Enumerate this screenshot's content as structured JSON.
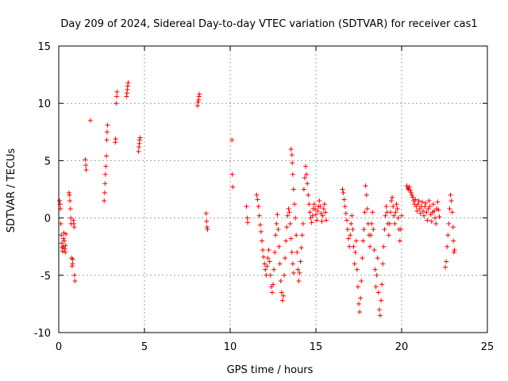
{
  "chart_data": {
    "type": "scatter",
    "title": "Day 209 of 2024, Sidereal Day-to-day VTEC variation (SDTVAR) for receiver cas1",
    "xlabel": "GPS time / hours",
    "ylabel": "SDTVAR / TECUs",
    "xlim": [
      0,
      25
    ],
    "ylim": [
      -10,
      15
    ],
    "xticks": [
      0,
      5,
      10,
      15,
      20,
      25
    ],
    "yticks": [
      -10,
      -5,
      0,
      5,
      10,
      15
    ],
    "xtick_labels": [
      "0",
      "5",
      "10",
      "15",
      "20",
      "25"
    ],
    "ytick_labels": [
      "-10",
      "-5",
      "0",
      "5",
      "10",
      "15"
    ],
    "grid": true,
    "marker": "+",
    "color": "#ff0000",
    "series": [
      {
        "name": "cas1",
        "points": [
          [
            0.05,
            1.5
          ],
          [
            0.08,
            1.2
          ],
          [
            0.1,
            0.8
          ],
          [
            0.12,
            -0.5
          ],
          [
            0.15,
            -1.5
          ],
          [
            0.18,
            -2.2
          ],
          [
            0.2,
            -2.6
          ],
          [
            0.22,
            -2.9
          ],
          [
            0.25,
            -2.5
          ],
          [
            0.28,
            -1.8
          ],
          [
            0.3,
            -1.3
          ],
          [
            0.32,
            -2.0
          ],
          [
            0.35,
            -2.7
          ],
          [
            0.38,
            -3.0
          ],
          [
            0.4,
            -2.4
          ],
          [
            0.42,
            -1.4
          ],
          [
            0.6,
            2.2
          ],
          [
            0.62,
            2.0
          ],
          [
            0.65,
            1.5
          ],
          [
            0.68,
            0.8
          ],
          [
            0.7,
            0.0
          ],
          [
            0.72,
            -0.5
          ],
          [
            0.75,
            -3.5
          ],
          [
            0.78,
            -4.2
          ],
          [
            0.8,
            -4.0
          ],
          [
            0.82,
            -3.6
          ],
          [
            0.85,
            -0.2
          ],
          [
            0.88,
            -0.5
          ],
          [
            0.9,
            -0.8
          ],
          [
            0.92,
            -5.0
          ],
          [
            0.95,
            -5.5
          ],
          [
            1.55,
            5.1
          ],
          [
            1.58,
            4.6
          ],
          [
            1.6,
            4.2
          ],
          [
            1.85,
            8.5
          ],
          [
            2.65,
            1.5
          ],
          [
            2.68,
            2.2
          ],
          [
            2.7,
            3.0
          ],
          [
            2.72,
            3.8
          ],
          [
            2.75,
            4.5
          ],
          [
            2.78,
            5.4
          ],
          [
            2.8,
            6.8
          ],
          [
            2.82,
            7.5
          ],
          [
            2.85,
            8.1
          ],
          [
            3.3,
            6.6
          ],
          [
            3.32,
            6.9
          ],
          [
            3.35,
            10.0
          ],
          [
            3.38,
            10.6
          ],
          [
            3.4,
            11.0
          ],
          [
            3.95,
            10.6
          ],
          [
            3.98,
            10.9
          ],
          [
            4.0,
            11.2
          ],
          [
            4.02,
            11.5
          ],
          [
            4.05,
            11.8
          ],
          [
            4.65,
            5.8
          ],
          [
            4.68,
            6.2
          ],
          [
            4.7,
            6.5
          ],
          [
            4.72,
            6.8
          ],
          [
            4.75,
            7.0
          ],
          [
            8.1,
            9.8
          ],
          [
            8.12,
            10.1
          ],
          [
            8.15,
            10.3
          ],
          [
            8.18,
            10.6
          ],
          [
            8.2,
            10.8
          ],
          [
            8.6,
            0.4
          ],
          [
            8.62,
            -0.3
          ],
          [
            8.65,
            -0.8
          ],
          [
            8.68,
            -1.0
          ],
          [
            10.1,
            6.8
          ],
          [
            10.12,
            3.8
          ],
          [
            10.15,
            2.7
          ],
          [
            10.95,
            1.0
          ],
          [
            11.0,
            0.0
          ],
          [
            11.02,
            -0.4
          ],
          [
            11.55,
            2.0
          ],
          [
            11.6,
            1.6
          ],
          [
            11.65,
            1.0
          ],
          [
            11.7,
            0.2
          ],
          [
            11.75,
            -0.6
          ],
          [
            11.8,
            -1.2
          ],
          [
            11.85,
            -2.0
          ],
          [
            11.9,
            -2.8
          ],
          [
            11.95,
            -3.4
          ],
          [
            12.0,
            -4.0
          ],
          [
            12.05,
            -4.5
          ],
          [
            12.1,
            -5.0
          ],
          [
            12.15,
            -4.2
          ],
          [
            12.2,
            -3.5
          ],
          [
            12.25,
            -2.8
          ],
          [
            12.3,
            -3.8
          ],
          [
            12.35,
            -5.0
          ],
          [
            12.4,
            -6.0
          ],
          [
            12.45,
            -6.5
          ],
          [
            12.5,
            -5.8
          ],
          [
            12.55,
            -4.5
          ],
          [
            12.6,
            -3.0
          ],
          [
            12.65,
            -1.5
          ],
          [
            12.7,
            -0.5
          ],
          [
            12.75,
            0.3
          ],
          [
            12.8,
            -1.0
          ],
          [
            12.85,
            -2.5
          ],
          [
            12.9,
            -4.0
          ],
          [
            12.95,
            -5.5
          ],
          [
            13.0,
            -6.5
          ],
          [
            13.05,
            -7.2
          ],
          [
            13.1,
            -6.8
          ],
          [
            13.15,
            -5.0
          ],
          [
            13.2,
            -3.5
          ],
          [
            13.25,
            -2.0
          ],
          [
            13.3,
            -0.8
          ],
          [
            13.35,
            0.2
          ],
          [
            13.4,
            0.8
          ],
          [
            13.45,
            0.5
          ],
          [
            13.5,
            -0.5
          ],
          [
            13.55,
            -1.8
          ],
          [
            13.6,
            -3.0
          ],
          [
            13.65,
            -4.0
          ],
          [
            13.7,
            -4.8
          ],
          [
            13.55,
            6.0
          ],
          [
            13.6,
            5.5
          ],
          [
            13.62,
            4.8
          ],
          [
            13.65,
            3.8
          ],
          [
            13.7,
            2.5
          ],
          [
            13.75,
            1.2
          ],
          [
            13.8,
            0.0
          ],
          [
            13.85,
            -1.5
          ],
          [
            13.9,
            -3.0
          ],
          [
            13.95,
            -4.5
          ],
          [
            14.0,
            -5.5
          ],
          [
            14.05,
            -4.8
          ],
          [
            14.1,
            -3.8
          ],
          [
            14.15,
            -2.6
          ],
          [
            14.2,
            -1.5
          ],
          [
            14.25,
            -0.5
          ],
          [
            14.3,
            2.5
          ],
          [
            14.35,
            3.5
          ],
          [
            14.4,
            4.5
          ],
          [
            14.45,
            3.8
          ],
          [
            14.5,
            3.0
          ],
          [
            14.55,
            2.0
          ],
          [
            14.6,
            1.2
          ],
          [
            14.65,
            0.5
          ],
          [
            14.7,
            0.0
          ],
          [
            14.75,
            -0.4
          ],
          [
            14.8,
            0.2
          ],
          [
            14.85,
            0.8
          ],
          [
            14.9,
            1.2
          ],
          [
            14.95,
            0.8
          ],
          [
            15.0,
            0.3
          ],
          [
            15.05,
            -0.2
          ],
          [
            15.1,
            0.6
          ],
          [
            15.15,
            1.0
          ],
          [
            15.2,
            1.5
          ],
          [
            15.25,
            1.0
          ],
          [
            15.3,
            0.4
          ],
          [
            15.35,
            -0.3
          ],
          [
            15.4,
            0.2
          ],
          [
            15.45,
            0.8
          ],
          [
            15.5,
            1.2
          ],
          [
            15.55,
            0.5
          ],
          [
            15.6,
            -0.2
          ],
          [
            16.55,
            2.5
          ],
          [
            16.6,
            2.2
          ],
          [
            16.65,
            1.6
          ],
          [
            16.7,
            1.0
          ],
          [
            16.75,
            0.4
          ],
          [
            16.8,
            -0.2
          ],
          [
            16.85,
            -1.0
          ],
          [
            16.9,
            -1.8
          ],
          [
            16.95,
            -2.5
          ],
          [
            17.0,
            -1.5
          ],
          [
            17.05,
            -0.5
          ],
          [
            17.1,
            0.2
          ],
          [
            17.15,
            -1.0
          ],
          [
            17.2,
            -2.5
          ],
          [
            17.25,
            -4.0
          ],
          [
            17.3,
            -3.0
          ],
          [
            17.35,
            -2.0
          ],
          [
            17.4,
            -4.5
          ],
          [
            17.45,
            -6.0
          ],
          [
            17.5,
            -7.5
          ],
          [
            17.55,
            -8.2
          ],
          [
            17.6,
            -7.0
          ],
          [
            17.65,
            -5.5
          ],
          [
            17.7,
            -3.5
          ],
          [
            17.75,
            -2.0
          ],
          [
            17.8,
            -1.0
          ],
          [
            17.85,
            0.5
          ],
          [
            17.9,
            2.8
          ],
          [
            17.95,
            2.0
          ],
          [
            18.0,
            0.8
          ],
          [
            18.05,
            -0.5
          ],
          [
            18.1,
            -1.5
          ],
          [
            18.15,
            -2.5
          ],
          [
            18.2,
            -1.5
          ],
          [
            18.25,
            -0.5
          ],
          [
            18.3,
            0.5
          ],
          [
            18.35,
            -1.0
          ],
          [
            18.4,
            -2.8
          ],
          [
            18.45,
            -4.5
          ],
          [
            18.5,
            -6.0
          ],
          [
            18.55,
            -5.0
          ],
          [
            18.6,
            -3.5
          ],
          [
            18.65,
            -6.5
          ],
          [
            18.7,
            -8.0
          ],
          [
            18.75,
            -8.5
          ],
          [
            18.8,
            -7.2
          ],
          [
            18.85,
            -5.8
          ],
          [
            18.9,
            -4.0
          ],
          [
            18.95,
            -2.5
          ],
          [
            19.0,
            -1.0
          ],
          [
            19.05,
            0.2
          ],
          [
            19.1,
            1.0
          ],
          [
            19.15,
            0.5
          ],
          [
            19.2,
            -0.5
          ],
          [
            19.25,
            -1.5
          ],
          [
            19.3,
            -0.5
          ],
          [
            19.35,
            0.5
          ],
          [
            19.4,
            1.5
          ],
          [
            19.45,
            1.8
          ],
          [
            19.5,
            1.0
          ],
          [
            19.55,
            0.2
          ],
          [
            19.6,
            -0.5
          ],
          [
            19.65,
            0.5
          ],
          [
            19.7,
            1.2
          ],
          [
            19.75,
            0.8
          ],
          [
            19.8,
            0.0
          ],
          [
            19.85,
            -1.0
          ],
          [
            19.9,
            -2.0
          ],
          [
            19.95,
            -1.0
          ],
          [
            20.0,
            0.2
          ],
          [
            20.3,
            2.8
          ],
          [
            20.35,
            2.6
          ],
          [
            20.4,
            2.5
          ],
          [
            20.45,
            2.7
          ],
          [
            20.5,
            2.4
          ],
          [
            20.55,
            2.2
          ],
          [
            20.6,
            2.0
          ],
          [
            20.65,
            1.8
          ],
          [
            20.7,
            1.5
          ],
          [
            20.75,
            1.2
          ],
          [
            20.8,
            1.6
          ],
          [
            20.85,
            1.0
          ],
          [
            20.9,
            0.6
          ],
          [
            20.95,
            1.2
          ],
          [
            21.0,
            1.5
          ],
          [
            21.05,
            0.8
          ],
          [
            21.1,
            0.4
          ],
          [
            21.15,
            1.0
          ],
          [
            21.2,
            1.4
          ],
          [
            21.25,
            0.6
          ],
          [
            21.3,
            0.2
          ],
          [
            21.35,
            1.0
          ],
          [
            21.4,
            1.3
          ],
          [
            21.45,
            0.5
          ],
          [
            21.5,
            -0.2
          ],
          [
            21.55,
            0.8
          ],
          [
            21.6,
            1.5
          ],
          [
            21.65,
            1.0
          ],
          [
            21.7,
            0.3
          ],
          [
            21.75,
            -0.3
          ],
          [
            21.8,
            0.5
          ],
          [
            21.85,
            1.2
          ],
          [
            21.9,
            0.6
          ],
          [
            21.95,
            0.0
          ],
          [
            22.0,
            -0.5
          ],
          [
            22.05,
            0.8
          ],
          [
            22.1,
            1.4
          ],
          [
            22.15,
            0.7
          ],
          [
            22.2,
            0.1
          ],
          [
            22.55,
            -4.3
          ],
          [
            22.6,
            -3.8
          ],
          [
            22.65,
            -2.5
          ],
          [
            22.7,
            -1.5
          ],
          [
            22.75,
            -0.5
          ],
          [
            22.8,
            0.8
          ],
          [
            22.85,
            2.0
          ],
          [
            22.9,
            1.5
          ],
          [
            22.95,
            0.5
          ],
          [
            23.0,
            -0.8
          ],
          [
            23.02,
            -2.0
          ],
          [
            23.05,
            -3.0
          ],
          [
            23.08,
            -2.8
          ]
        ]
      }
    ]
  }
}
